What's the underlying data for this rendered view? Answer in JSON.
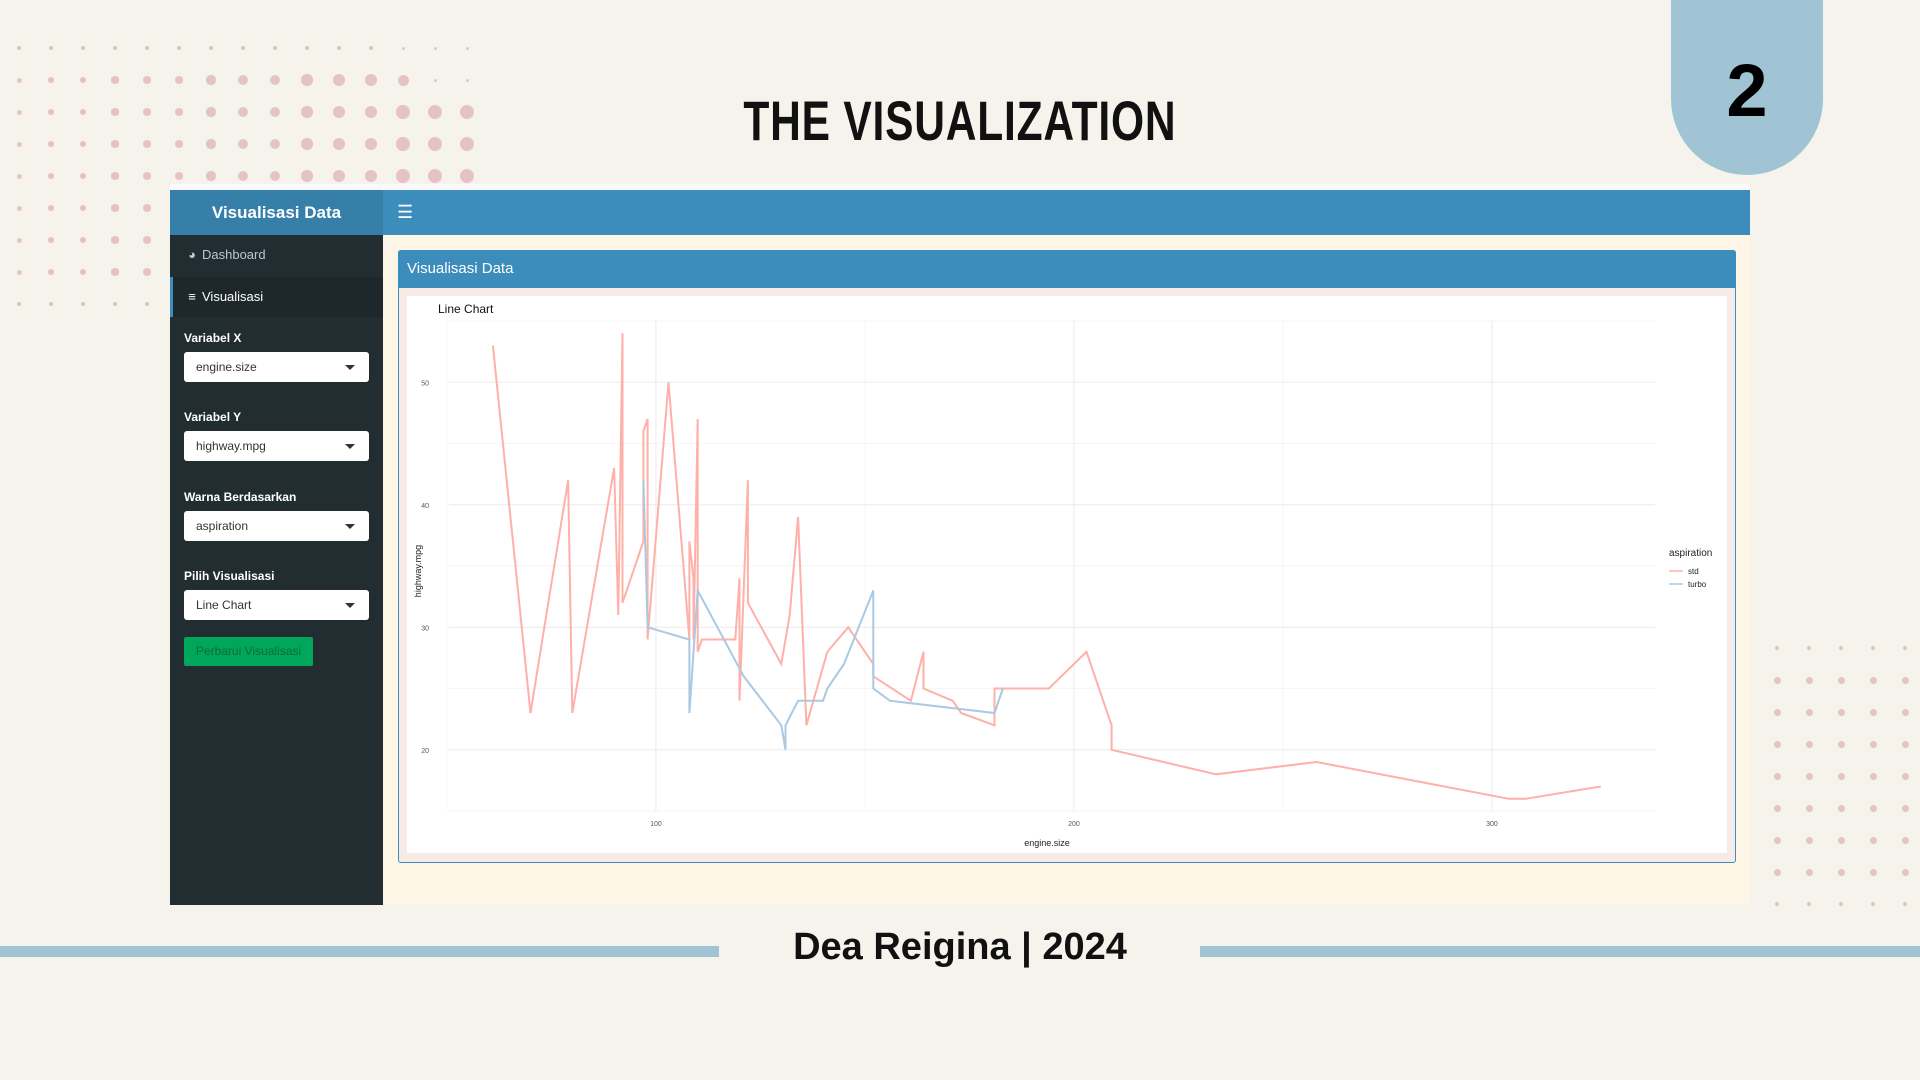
{
  "slide": {
    "title": "THE VISUALIZATION",
    "number": "2",
    "footer": "Dea Reigina | 2024",
    "accent": "#a0c4d3",
    "dot_color": "#e6c3c3"
  },
  "app": {
    "logo": "Visualisasi Data",
    "menu_icon": "hamburger-icon",
    "sidebar": {
      "items": [
        {
          "label": "Dashboard",
          "icon": "dashboard-icon",
          "active": false
        },
        {
          "label": "Visualisasi",
          "icon": "chart-icon",
          "active": true
        }
      ],
      "controls": [
        {
          "label": "Variabel X",
          "value": "engine.size"
        },
        {
          "label": "Variabel Y",
          "value": "highway.mpg"
        },
        {
          "label": "Warna Berdasarkan",
          "value": "aspiration"
        },
        {
          "label": "Pilih Visualisasi",
          "value": "Line Chart"
        }
      ],
      "update_button": "Perbarui Visualisasi"
    },
    "box_title": "Visualisasi Data"
  },
  "chart_data": {
    "type": "line",
    "title": "Line Chart",
    "xlabel": "engine.size",
    "ylabel": "highway.mpg",
    "xlim": [
      50.5,
      339
    ],
    "ylim": [
      15,
      55
    ],
    "xticks": [
      100,
      200,
      300
    ],
    "yticks": [
      20,
      30,
      40,
      50
    ],
    "grid": true,
    "legend": {
      "title": "aspiration",
      "position": "right"
    },
    "series": [
      {
        "name": "std",
        "color": "#ffb0a8",
        "points": [
          [
            61,
            53
          ],
          [
            70,
            23
          ],
          [
            79,
            42
          ],
          [
            80,
            23
          ],
          [
            90,
            43
          ],
          [
            91,
            31
          ],
          [
            92,
            54
          ],
          [
            92,
            32
          ],
          [
            97,
            37
          ],
          [
            97,
            46
          ],
          [
            98,
            47
          ],
          [
            98,
            29
          ],
          [
            103,
            50
          ],
          [
            108,
            29
          ],
          [
            108,
            37
          ],
          [
            109,
            34
          ],
          [
            109,
            29
          ],
          [
            110,
            47
          ],
          [
            110,
            28
          ],
          [
            111,
            29
          ],
          [
            119,
            29
          ],
          [
            120,
            34
          ],
          [
            120,
            24
          ],
          [
            122,
            42
          ],
          [
            122,
            32
          ],
          [
            130,
            27
          ],
          [
            132,
            31
          ],
          [
            134,
            39
          ],
          [
            136,
            22
          ],
          [
            141,
            28
          ],
          [
            146,
            30
          ],
          [
            152,
            27
          ],
          [
            152,
            26
          ],
          [
            161,
            24
          ],
          [
            164,
            28
          ],
          [
            164,
            25
          ],
          [
            171,
            24
          ],
          [
            173,
            23
          ],
          [
            181,
            22
          ],
          [
            181,
            25
          ],
          [
            194,
            25
          ],
          [
            203,
            28
          ],
          [
            209,
            22
          ],
          [
            209,
            20
          ],
          [
            234,
            18
          ],
          [
            258,
            19
          ],
          [
            304,
            16
          ],
          [
            308,
            16
          ],
          [
            326,
            17
          ]
        ]
      },
      {
        "name": "turbo",
        "color": "#aac9e2",
        "points": [
          [
            97,
            42
          ],
          [
            98,
            30
          ],
          [
            108,
            29
          ],
          [
            108,
            23
          ],
          [
            110,
            33
          ],
          [
            121,
            26
          ],
          [
            130,
            22
          ],
          [
            131,
            20
          ],
          [
            131,
            22
          ],
          [
            134,
            24
          ],
          [
            140,
            24
          ],
          [
            141,
            25
          ],
          [
            145,
            27
          ],
          [
            152,
            33
          ],
          [
            152,
            25
          ],
          [
            156,
            24
          ],
          [
            181,
            23
          ],
          [
            183,
            25
          ]
        ]
      }
    ]
  }
}
